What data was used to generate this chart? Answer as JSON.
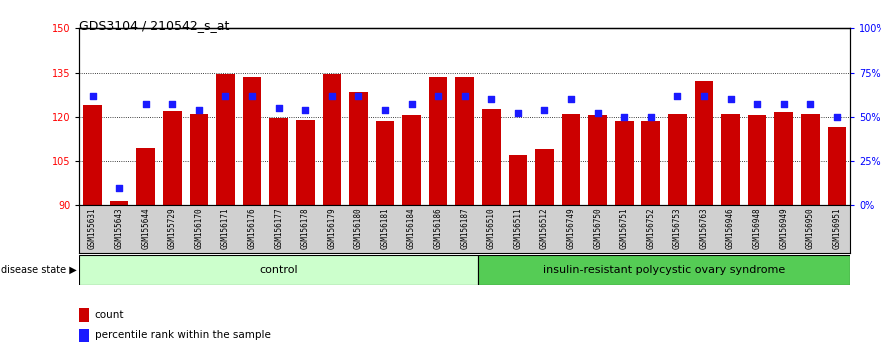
{
  "title": "GDS3104 / 210542_s_at",
  "samples": [
    "GSM155631",
    "GSM155643",
    "GSM155644",
    "GSM155729",
    "GSM156170",
    "GSM156171",
    "GSM156176",
    "GSM156177",
    "GSM156178",
    "GSM156179",
    "GSM156180",
    "GSM156181",
    "GSM156184",
    "GSM156186",
    "GSM156187",
    "GSM156510",
    "GSM156511",
    "GSM156512",
    "GSM156749",
    "GSM156750",
    "GSM156751",
    "GSM156752",
    "GSM156753",
    "GSM156763",
    "GSM156946",
    "GSM156948",
    "GSM156949",
    "GSM156950",
    "GSM156951"
  ],
  "bar_values": [
    124.0,
    91.5,
    109.5,
    122.0,
    121.0,
    134.5,
    133.5,
    119.5,
    119.0,
    134.5,
    128.5,
    118.5,
    120.5,
    133.5,
    133.5,
    122.5,
    107.0,
    109.0,
    121.0,
    120.5,
    118.5,
    118.5,
    121.0,
    132.0,
    121.0,
    120.5,
    121.5,
    121.0,
    116.5
  ],
  "percentile_values": [
    62,
    10,
    57,
    57,
    54,
    62,
    62,
    55,
    54,
    62,
    62,
    54,
    57,
    62,
    62,
    60,
    52,
    54,
    60,
    52,
    50,
    50,
    62,
    62,
    60,
    57,
    57,
    57,
    50
  ],
  "control_count": 15,
  "disease_count": 14,
  "ylim_left": [
    90,
    150
  ],
  "ylim_right": [
    0,
    100
  ],
  "yticks_left": [
    90,
    105,
    120,
    135,
    150
  ],
  "yticks_right": [
    0,
    25,
    50,
    75,
    100
  ],
  "bar_color": "#cc0000",
  "percentile_color": "#1a1aff",
  "control_label": "control",
  "disease_label": "insulin-resistant polycystic ovary syndrome",
  "control_bg": "#ccffcc",
  "disease_bg": "#55cc55",
  "xticklabel_bg": "#d0d0d0",
  "legend_count_label": "count",
  "legend_percentile_label": "percentile rank within the sample",
  "disease_state_label": "disease state"
}
